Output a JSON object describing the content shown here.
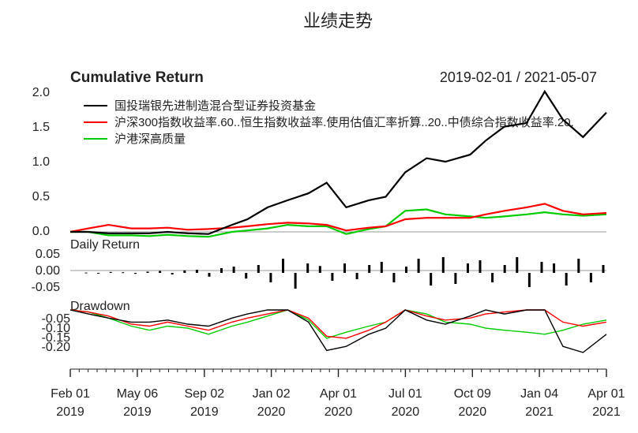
{
  "page_title": "业绩走势",
  "colors": {
    "fund": "#000000",
    "benchmark": "#ff0000",
    "index": "#00cc00",
    "axis": "#222222",
    "grid": "#999999"
  },
  "panels": {
    "cumulative": {
      "title": "Cumulative Return",
      "date_range": "2019-02-01 / 2021-05-07",
      "yticks": [
        "2.0",
        "1.5",
        "1.0",
        "0.5",
        "0.0"
      ]
    },
    "daily": {
      "title": "Daily Return",
      "yticks": [
        "0.05",
        "0.00",
        "-0.05"
      ]
    },
    "drawdown": {
      "title": "Drawdown",
      "yticks": [
        "-0.05",
        "-0.10",
        "-0.15",
        "-0.20"
      ]
    }
  },
  "legend": [
    {
      "name": "国投瑞银先进制造混合型证券投资基金",
      "color": "#000000"
    },
    {
      "name": "沪深300指数收益率.60..恒生指数收益率.使用估值汇率折算..20..中债综合指数收益率.20.",
      "color": "#ff0000"
    },
    {
      "name": "沪港深高质量",
      "color": "#00cc00"
    }
  ],
  "x_axis": {
    "ticks": [
      {
        "line1": "Feb 01",
        "line2": "2019"
      },
      {
        "line1": "May 06",
        "line2": "2019"
      },
      {
        "line1": "Sep 02",
        "line2": "2019"
      },
      {
        "line1": "Jan 02",
        "line2": "2020"
      },
      {
        "line1": "Apr 01",
        "line2": "2020"
      },
      {
        "line1": "Jul 01",
        "line2": "2020"
      },
      {
        "line1": "Oct 09",
        "line2": "2020"
      },
      {
        "line1": "Jan 04",
        "line2": "2021"
      },
      {
        "line1": "Apr 01",
        "line2": "2021"
      }
    ]
  },
  "chart_data": {
    "type": "line",
    "title": "Cumulative Return",
    "x": [
      "2019-02-01",
      "2019-03-01",
      "2019-04-01",
      "2019-05-06",
      "2019-06-03",
      "2019-07-01",
      "2019-08-01",
      "2019-09-02",
      "2019-10-08",
      "2019-11-01",
      "2019-12-02",
      "2020-01-02",
      "2020-02-03",
      "2020-03-02",
      "2020-04-01",
      "2020-05-06",
      "2020-06-01",
      "2020-07-01",
      "2020-08-03",
      "2020-09-01",
      "2020-10-09",
      "2020-11-02",
      "2020-12-01",
      "2021-01-04",
      "2021-02-01",
      "2021-03-01",
      "2021-04-01",
      "2021-05-07"
    ],
    "ylim": [
      0,
      2.0
    ],
    "series": [
      {
        "name": "国投瑞银先进制造混合型证券投资基金",
        "values": [
          0.0,
          0.0,
          -0.02,
          -0.02,
          -0.02,
          0.0,
          -0.02,
          -0.03,
          0.1,
          0.18,
          0.35,
          0.45,
          0.55,
          0.7,
          0.35,
          0.45,
          0.5,
          0.85,
          1.05,
          1.0,
          1.1,
          1.3,
          1.5,
          1.55,
          2.0,
          1.6,
          1.35,
          1.7
        ]
      },
      {
        "name": "沪深300指数收益率.60..恒生指数收益率.使用估值汇率折算..20..中债综合指数收益率.20.",
        "values": [
          0.0,
          0.05,
          0.1,
          0.05,
          0.05,
          0.06,
          0.03,
          0.04,
          0.06,
          0.08,
          0.11,
          0.13,
          0.12,
          0.1,
          0.02,
          0.06,
          0.08,
          0.18,
          0.2,
          0.2,
          0.2,
          0.25,
          0.3,
          0.35,
          0.4,
          0.3,
          0.25,
          0.27
        ]
      },
      {
        "name": "沪港深高质量",
        "values": [
          0.0,
          0.0,
          -0.05,
          -0.05,
          -0.06,
          -0.04,
          -0.06,
          -0.07,
          0.0,
          0.02,
          0.05,
          0.1,
          0.08,
          0.08,
          -0.03,
          0.04,
          0.08,
          0.3,
          0.32,
          0.25,
          0.22,
          0.2,
          0.22,
          0.25,
          0.28,
          0.25,
          0.23,
          0.25
        ]
      }
    ],
    "daily_return": {
      "ylim": [
        -0.08,
        0.07
      ],
      "values": [
        0.001,
        -0.002,
        0.003,
        0.002,
        -0.003,
        0.004,
        0.006,
        -0.005,
        0.008,
        0.01,
        -0.012,
        0.015,
        0.02,
        -0.018,
        0.025,
        -0.03,
        0.045,
        -0.05,
        0.03,
        0.022,
        -0.025,
        0.03,
        -0.02,
        0.025,
        0.035,
        -0.03,
        0.02,
        0.045,
        -0.04,
        0.05,
        -0.035,
        0.03,
        0.04,
        -0.03,
        0.025,
        0.05,
        -0.045,
        0.035,
        0.03,
        -0.04,
        0.045,
        -0.03,
        0.025
      ]
    },
    "drawdown": {
      "ylim": [
        -0.23,
        0.0
      ],
      "series": [
        {
          "values": [
            0.0,
            -0.02,
            -0.04,
            -0.06,
            -0.06,
            -0.05,
            -0.07,
            -0.08,
            -0.04,
            -0.02,
            0.0,
            0.0,
            -0.06,
            -0.2,
            -0.18,
            -0.12,
            -0.09,
            0.0,
            -0.05,
            -0.07,
            -0.03,
            0.0,
            -0.02,
            0.0,
            0.0,
            -0.18,
            -0.21,
            -0.12
          ]
        },
        {
          "values": [
            0.0,
            -0.01,
            -0.03,
            -0.07,
            -0.08,
            -0.06,
            -0.08,
            -0.1,
            -0.06,
            -0.04,
            -0.02,
            0.0,
            -0.04,
            -0.13,
            -0.14,
            -0.1,
            -0.06,
            0.0,
            -0.03,
            -0.05,
            -0.04,
            -0.02,
            -0.01,
            0.0,
            0.0,
            -0.06,
            -0.08,
            -0.06
          ]
        },
        {
          "values": [
            0.0,
            -0.01,
            -0.04,
            -0.08,
            -0.1,
            -0.08,
            -0.09,
            -0.12,
            -0.08,
            -0.06,
            -0.03,
            0.0,
            -0.05,
            -0.14,
            -0.11,
            -0.08,
            -0.06,
            0.0,
            -0.02,
            -0.06,
            -0.07,
            -0.09,
            -0.1,
            -0.11,
            -0.12,
            -0.1,
            -0.07,
            -0.05
          ]
        }
      ]
    }
  }
}
